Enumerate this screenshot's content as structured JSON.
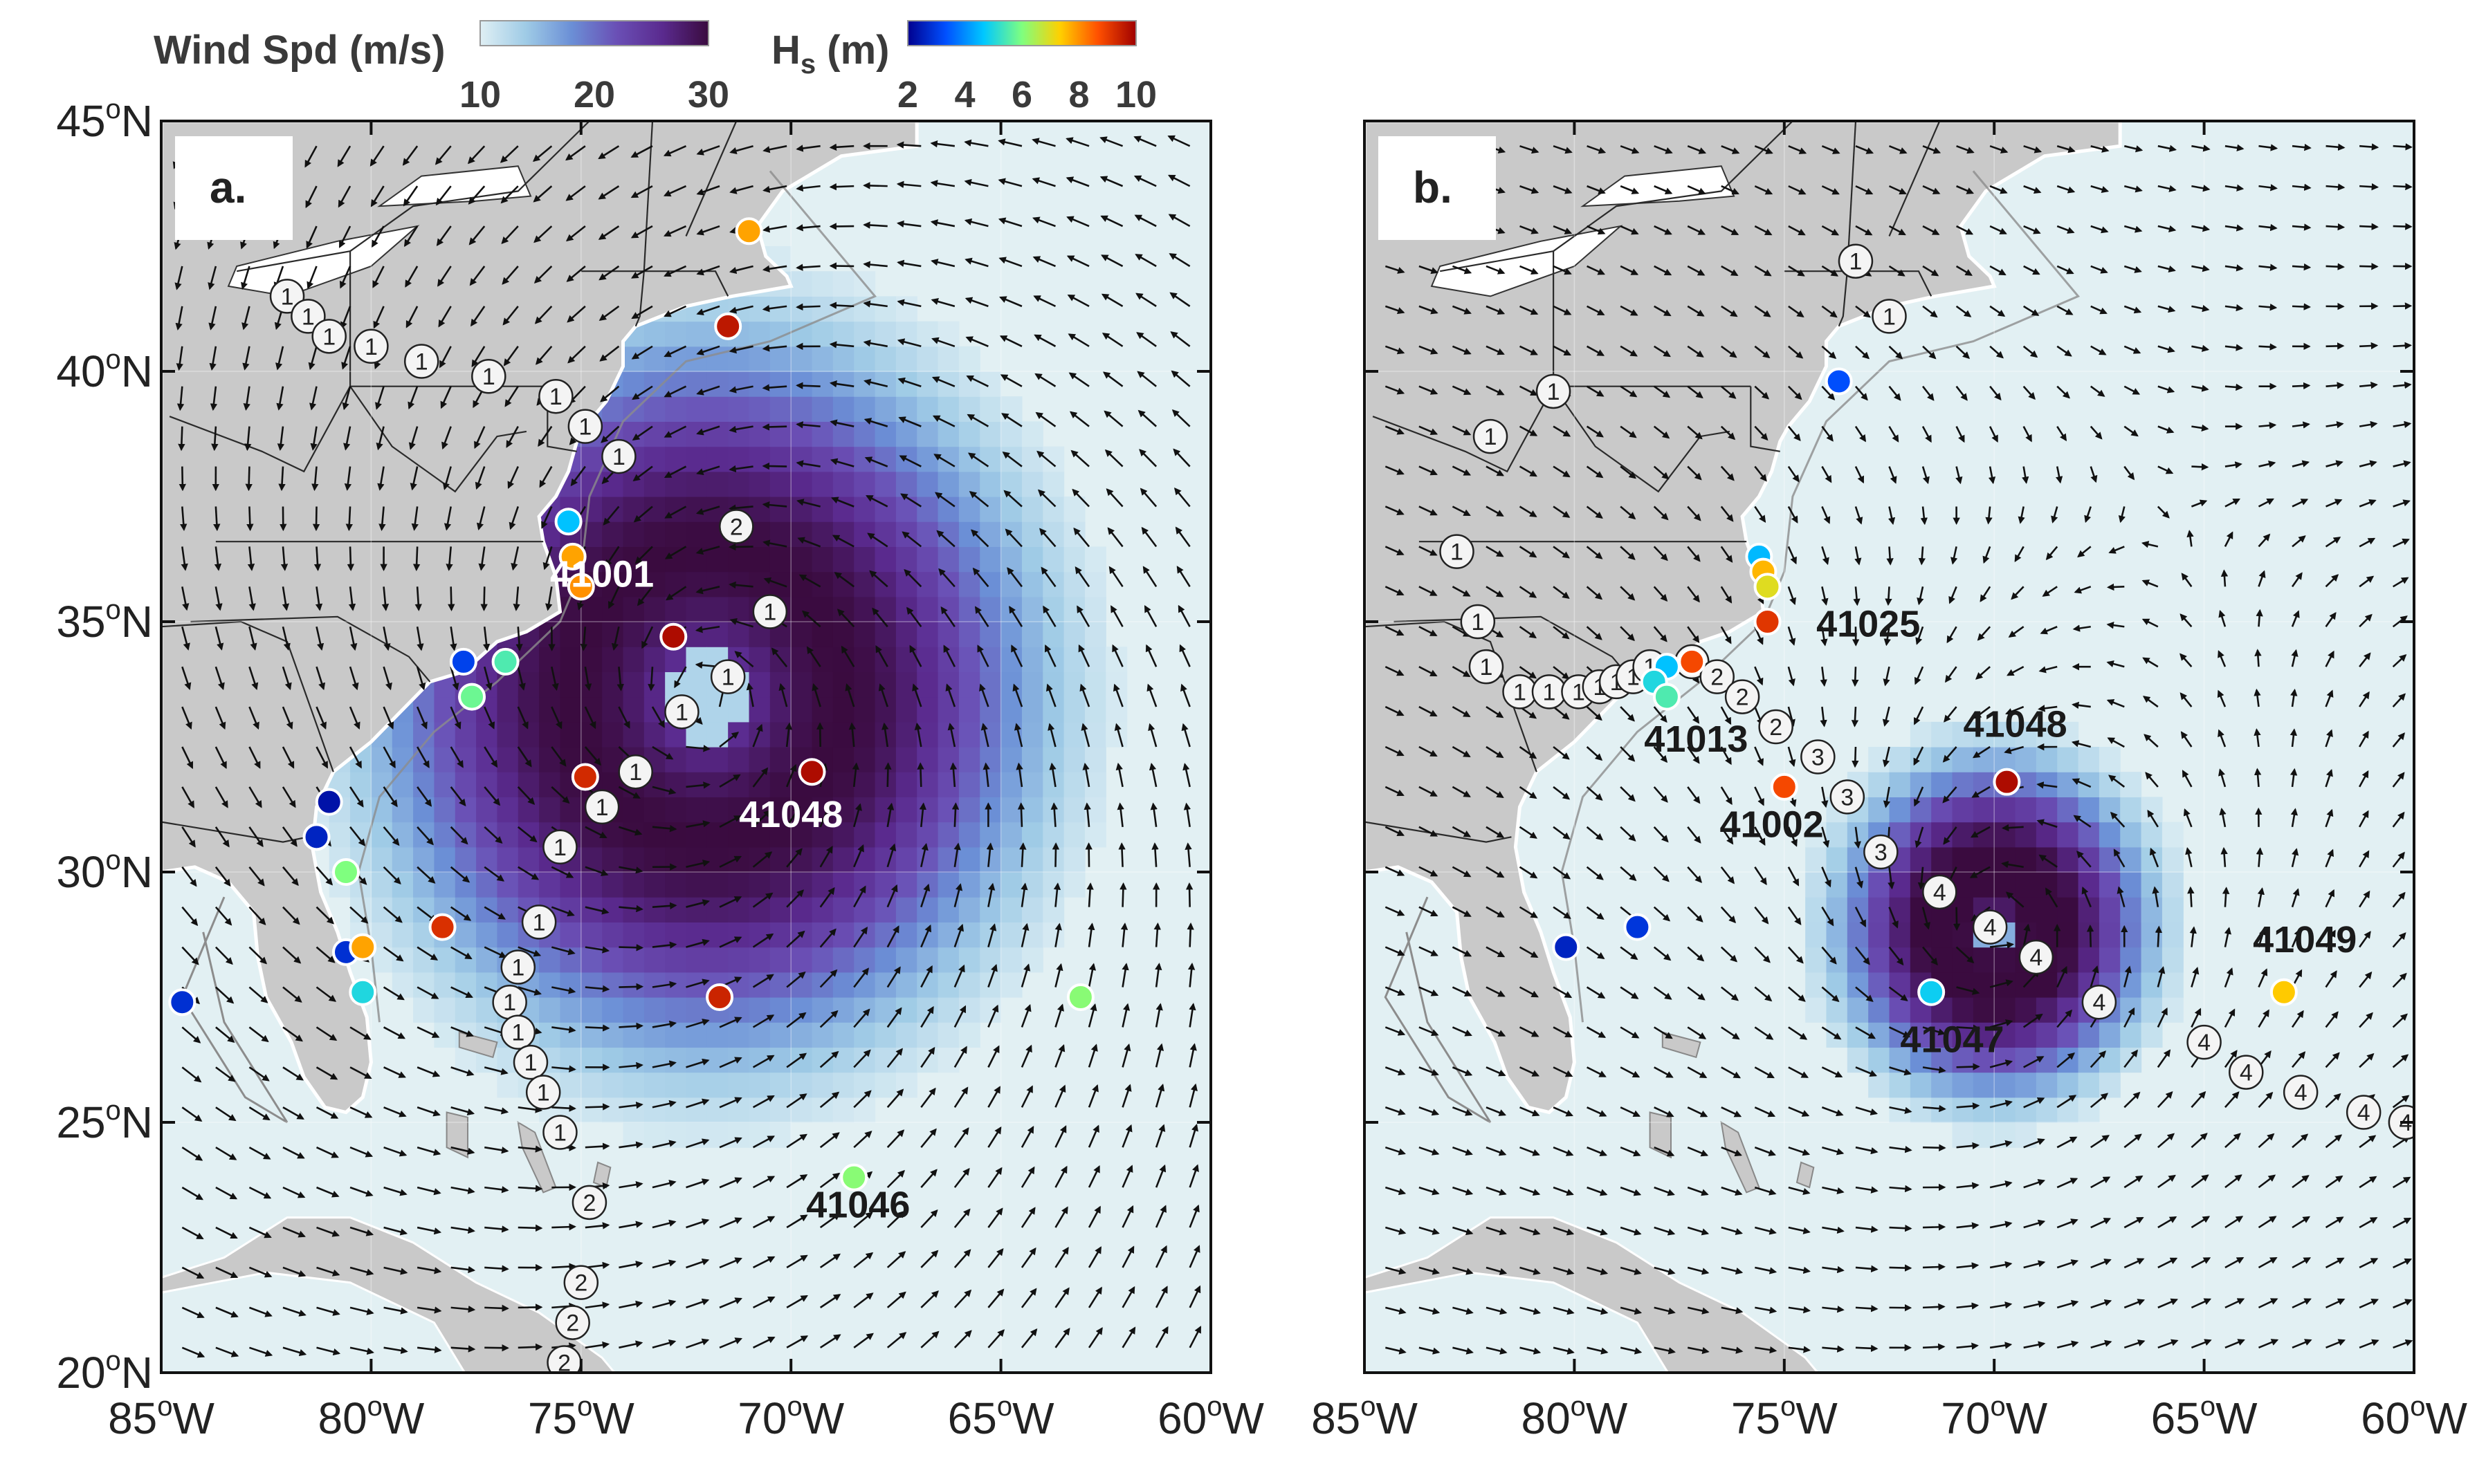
{
  "colorbars": {
    "wind": {
      "label": "Wind Spd (m/s)",
      "ticks": [
        "10",
        "20",
        "30"
      ],
      "colors": [
        "#dfeff4",
        "#9fcbe6",
        "#6b8fd6",
        "#6a4fb5",
        "#5a2a8e",
        "#3a0b3f"
      ]
    },
    "hs": {
      "label_main": "H",
      "label_sub": "s",
      "label_unit": " (m)",
      "ticks": [
        "2",
        "4",
        "6",
        "8",
        "10"
      ],
      "colors": [
        "#00008f",
        "#0050ff",
        "#00c8ff",
        "#7fff7f",
        "#ffd000",
        "#ff5000",
        "#9f0000"
      ]
    }
  },
  "axes": {
    "lat_labels": [
      {
        "value": 45,
        "deg": "45",
        "hem": "N"
      },
      {
        "value": 40,
        "deg": "40",
        "hem": "N"
      },
      {
        "value": 35,
        "deg": "35",
        "hem": "N"
      },
      {
        "value": 30,
        "deg": "30",
        "hem": "N"
      },
      {
        "value": 25,
        "deg": "25",
        "hem": "N"
      },
      {
        "value": 20,
        "deg": "20",
        "hem": "N"
      }
    ],
    "lon_labels": [
      {
        "value": -85,
        "deg": "85",
        "hem": "W"
      },
      {
        "value": -80,
        "deg": "80",
        "hem": "W"
      },
      {
        "value": -75,
        "deg": "75",
        "hem": "W"
      },
      {
        "value": -70,
        "deg": "70",
        "hem": "W"
      },
      {
        "value": -65,
        "deg": "65",
        "hem": "W"
      },
      {
        "value": -60,
        "deg": "60",
        "hem": "W"
      }
    ],
    "degree_symbol": "o"
  },
  "panels": [
    {
      "id": "a",
      "label": "a.",
      "storm": {
        "lon": -72.0,
        "lat": 33.5,
        "radius_deg": 9.5,
        "max_wind": 30,
        "broad": true
      },
      "track_label_color": "#ffffff",
      "track": [
        {
          "lon": -82.0,
          "lat": 41.5,
          "n": "1"
        },
        {
          "lon": -81.5,
          "lat": 41.1,
          "n": "1"
        },
        {
          "lon": -81.0,
          "lat": 40.7,
          "n": "1"
        },
        {
          "lon": -80.0,
          "lat": 40.5,
          "n": "1"
        },
        {
          "lon": -78.8,
          "lat": 40.2,
          "n": "1"
        },
        {
          "lon": -77.2,
          "lat": 39.9,
          "n": "1"
        },
        {
          "lon": -75.6,
          "lat": 39.5,
          "n": "1"
        },
        {
          "lon": -74.9,
          "lat": 38.9,
          "n": "1"
        },
        {
          "lon": -74.1,
          "lat": 38.3,
          "n": "1"
        },
        {
          "lon": -71.3,
          "lat": 36.9,
          "n": "2"
        },
        {
          "lon": -70.5,
          "lat": 35.2,
          "n": "1"
        },
        {
          "lon": -71.5,
          "lat": 33.9,
          "n": "1"
        },
        {
          "lon": -72.6,
          "lat": 33.2,
          "n": "1"
        },
        {
          "lon": -73.7,
          "lat": 32.0,
          "n": "1"
        },
        {
          "lon": -74.5,
          "lat": 31.3,
          "n": "1"
        },
        {
          "lon": -75.5,
          "lat": 30.5,
          "n": "1"
        },
        {
          "lon": -76.0,
          "lat": 29.0,
          "n": "1"
        },
        {
          "lon": -76.5,
          "lat": 28.1,
          "n": "1"
        },
        {
          "lon": -76.7,
          "lat": 27.4,
          "n": "1"
        },
        {
          "lon": -76.5,
          "lat": 26.8,
          "n": "1"
        },
        {
          "lon": -76.2,
          "lat": 26.2,
          "n": "1"
        },
        {
          "lon": -75.9,
          "lat": 25.6,
          "n": "1"
        },
        {
          "lon": -75.5,
          "lat": 24.8,
          "n": "1"
        },
        {
          "lon": -74.8,
          "lat": 23.4,
          "n": "2"
        },
        {
          "lon": -75.0,
          "lat": 21.8,
          "n": "2"
        },
        {
          "lon": -75.2,
          "lat": 21.0,
          "n": "2"
        },
        {
          "lon": -75.4,
          "lat": 20.2,
          "n": "2"
        }
      ],
      "buoys": [
        {
          "lon": -71.0,
          "lat": 42.8,
          "hs": 7.8
        },
        {
          "lon": -71.5,
          "lat": 40.9,
          "hs": 9.6
        },
        {
          "lon": -75.3,
          "lat": 37.0,
          "hs": 4.6
        },
        {
          "lon": -75.2,
          "lat": 36.3,
          "hs": 7.8
        },
        {
          "lon": -75.0,
          "lat": 35.7,
          "hs": 8.0
        },
        {
          "lon": -72.8,
          "lat": 34.7,
          "hs": 9.8
        },
        {
          "lon": -77.8,
          "lat": 34.2,
          "hs": 3.1
        },
        {
          "lon": -76.8,
          "lat": 34.2,
          "hs": 5.5
        },
        {
          "lon": -77.6,
          "lat": 33.5,
          "hs": 5.8
        },
        {
          "lon": -74.9,
          "lat": 31.9,
          "hs": 9.3
        },
        {
          "lon": -69.5,
          "lat": 32.0,
          "hs": 9.8
        },
        {
          "lon": -81.0,
          "lat": 31.4,
          "hs": 2.3
        },
        {
          "lon": -81.3,
          "lat": 30.7,
          "hs": 2.6
        },
        {
          "lon": -80.6,
          "lat": 30.0,
          "hs": 6.0
        },
        {
          "lon": -78.3,
          "lat": 28.9,
          "hs": 9.2
        },
        {
          "lon": -80.6,
          "lat": 28.4,
          "hs": 2.8
        },
        {
          "lon": -80.2,
          "lat": 28.5,
          "hs": 7.8
        },
        {
          "lon": -80.2,
          "lat": 27.6,
          "hs": 5.0
        },
        {
          "lon": -84.5,
          "lat": 27.4,
          "hs": 2.8
        },
        {
          "lon": -71.7,
          "lat": 27.5,
          "hs": 9.4
        },
        {
          "lon": -63.1,
          "lat": 27.5,
          "hs": 6.1
        },
        {
          "lon": -68.5,
          "lat": 23.9,
          "hs": 6.1
        }
      ],
      "buoy_labels": [
        {
          "text": "41001",
          "lon": -74.5,
          "lat": 35.7,
          "color": "#ffffff"
        },
        {
          "text": "41048",
          "lon": -70.0,
          "lat": 30.9,
          "color": "#ffffff"
        },
        {
          "text": "41046",
          "lon": -68.4,
          "lat": 23.1,
          "color": "#1a1a1a"
        }
      ]
    },
    {
      "id": "b",
      "label": "b.",
      "storm": {
        "lon": -70.0,
        "lat": 28.9,
        "radius_deg": 5.5,
        "max_wind": 30,
        "broad": false
      },
      "track_label_color": "#222222",
      "track": [
        {
          "lon": -73.3,
          "lat": 42.2,
          "n": "1"
        },
        {
          "lon": -72.5,
          "lat": 41.1,
          "n": "1"
        },
        {
          "lon": -80.5,
          "lat": 39.6,
          "n": "1"
        },
        {
          "lon": -82.0,
          "lat": 38.7,
          "n": "1"
        },
        {
          "lon": -82.8,
          "lat": 36.4,
          "n": "1"
        },
        {
          "lon": -82.3,
          "lat": 35.0,
          "n": "1"
        },
        {
          "lon": -82.1,
          "lat": 34.1,
          "n": "1"
        },
        {
          "lon": -81.3,
          "lat": 33.6,
          "n": "1"
        },
        {
          "lon": -80.6,
          "lat": 33.6,
          "n": "1"
        },
        {
          "lon": -79.9,
          "lat": 33.6,
          "n": "1"
        },
        {
          "lon": -79.4,
          "lat": 33.7,
          "n": "1"
        },
        {
          "lon": -79.0,
          "lat": 33.8,
          "n": "1"
        },
        {
          "lon": -78.6,
          "lat": 33.9,
          "n": "1"
        },
        {
          "lon": -78.2,
          "lat": 34.1,
          "n": "1"
        },
        {
          "lon": -77.2,
          "lat": 34.2,
          "n": "2"
        },
        {
          "lon": -76.6,
          "lat": 33.9,
          "n": "2"
        },
        {
          "lon": -76.0,
          "lat": 33.5,
          "n": "2"
        },
        {
          "lon": -75.2,
          "lat": 32.9,
          "n": "2"
        },
        {
          "lon": -74.2,
          "lat": 32.3,
          "n": "3"
        },
        {
          "lon": -73.5,
          "lat": 31.5,
          "n": "3"
        },
        {
          "lon": -72.7,
          "lat": 30.4,
          "n": "3"
        },
        {
          "lon": -71.3,
          "lat": 29.6,
          "n": "4"
        },
        {
          "lon": -70.1,
          "lat": 28.9,
          "n": "4"
        },
        {
          "lon": -69.0,
          "lat": 28.3,
          "n": "4"
        },
        {
          "lon": -67.5,
          "lat": 27.4,
          "n": "4"
        },
        {
          "lon": -65.0,
          "lat": 26.6,
          "n": "4"
        },
        {
          "lon": -64.0,
          "lat": 26.0,
          "n": "4"
        },
        {
          "lon": -62.7,
          "lat": 25.6,
          "n": "4"
        },
        {
          "lon": -61.2,
          "lat": 25.2,
          "n": "4"
        },
        {
          "lon": -60.2,
          "lat": 25.0,
          "n": "4"
        }
      ],
      "buoys": [
        {
          "lon": -73.7,
          "lat": 39.8,
          "hs": 3.3
        },
        {
          "lon": -75.6,
          "lat": 36.3,
          "hs": 4.5
        },
        {
          "lon": -75.5,
          "lat": 36.0,
          "hs": 7.6
        },
        {
          "lon": -75.4,
          "lat": 35.7,
          "hs": 7.0
        },
        {
          "lon": -75.4,
          "lat": 35.0,
          "hs": 9.1
        },
        {
          "lon": -77.2,
          "lat": 34.2,
          "hs": 8.8
        },
        {
          "lon": -77.8,
          "lat": 34.1,
          "hs": 4.6
        },
        {
          "lon": -78.1,
          "lat": 33.8,
          "hs": 5.0
        },
        {
          "lon": -77.8,
          "lat": 33.5,
          "hs": 5.5
        },
        {
          "lon": -75.0,
          "lat": 31.7,
          "hs": 8.8
        },
        {
          "lon": -69.7,
          "lat": 31.8,
          "hs": 9.8
        },
        {
          "lon": -80.2,
          "lat": 28.5,
          "hs": 2.6
        },
        {
          "lon": -78.5,
          "lat": 28.9,
          "hs": 2.9
        },
        {
          "lon": -71.5,
          "lat": 27.6,
          "hs": 4.8
        },
        {
          "lon": -63.1,
          "lat": 27.6,
          "hs": 7.4
        }
      ],
      "buoy_labels": [
        {
          "text": "41025",
          "lon": -73.0,
          "lat": 34.7,
          "color": "#1a1a1a"
        },
        {
          "text": "41013",
          "lon": -77.1,
          "lat": 32.4,
          "color": "#1a1a1a"
        },
        {
          "text": "41048",
          "lon": -69.5,
          "lat": 32.7,
          "color": "#1a1a1a"
        },
        {
          "text": "41002",
          "lon": -75.3,
          "lat": 30.7,
          "color": "#1a1a1a"
        },
        {
          "text": "41047",
          "lon": -71.0,
          "lat": 26.4,
          "color": "#1a1a1a"
        },
        {
          "text": "41049",
          "lon": -62.6,
          "lat": 28.4,
          "color": "#1a1a1a"
        }
      ]
    }
  ]
}
